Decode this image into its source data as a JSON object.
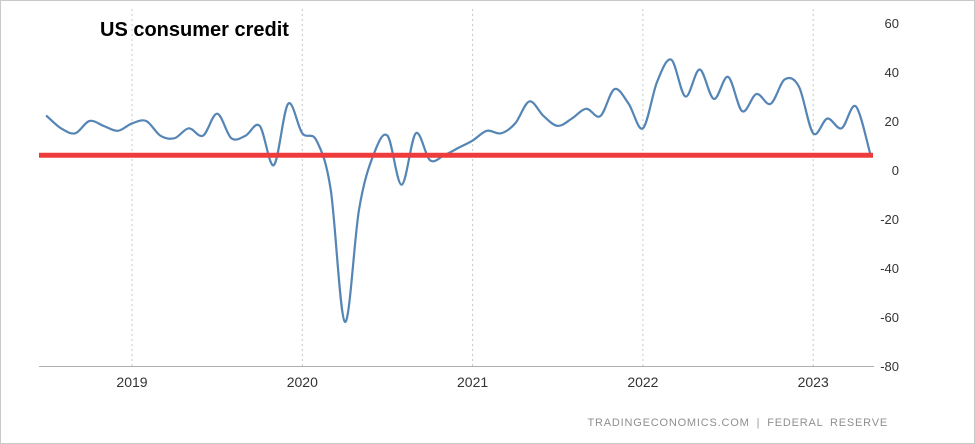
{
  "title": "US consumer credit",
  "attribution": {
    "left": "TRADINGECONOMICS.COM",
    "separator": "|",
    "right": "FEDERAL RESERVE"
  },
  "colors": {
    "line": "#5585b5",
    "reference_line": "#ee3c3c",
    "grid": "#c8c8c8",
    "axis": "#aeaeae",
    "tick_text": "#333333"
  },
  "chart_data": {
    "type": "line",
    "title": "US consumer credit",
    "x_axis": {
      "tick_labels": [
        "2019",
        "2020",
        "2021",
        "2022",
        "2023"
      ]
    },
    "y_axis": {
      "tick_labels": [
        60,
        40,
        20,
        0,
        -20,
        -40,
        -60,
        -80
      ],
      "range": [
        -80,
        60
      ],
      "position": "right"
    },
    "grid": {
      "vertical": "dotted",
      "horizontal": "none"
    },
    "series": [
      {
        "name": "US consumer credit",
        "start": "2018-07",
        "frequency": "monthly",
        "values": [
          22,
          17,
          15,
          20,
          18,
          16,
          19,
          20,
          14,
          13,
          17,
          14,
          23,
          13,
          14,
          18,
          2,
          27,
          15,
          12,
          -8,
          -62,
          -16,
          6,
          14,
          -6,
          15,
          4,
          6,
          9,
          12,
          16,
          15,
          19,
          28,
          22,
          18,
          21,
          25,
          22,
          33,
          27,
          17,
          36,
          45,
          30,
          41,
          29,
          38,
          24,
          31,
          27,
          37,
          34,
          15,
          21,
          17,
          26,
          7
        ]
      }
    ],
    "reference_line": {
      "orientation": "horizontal",
      "value": 6,
      "color": "#ee3c3c"
    }
  }
}
